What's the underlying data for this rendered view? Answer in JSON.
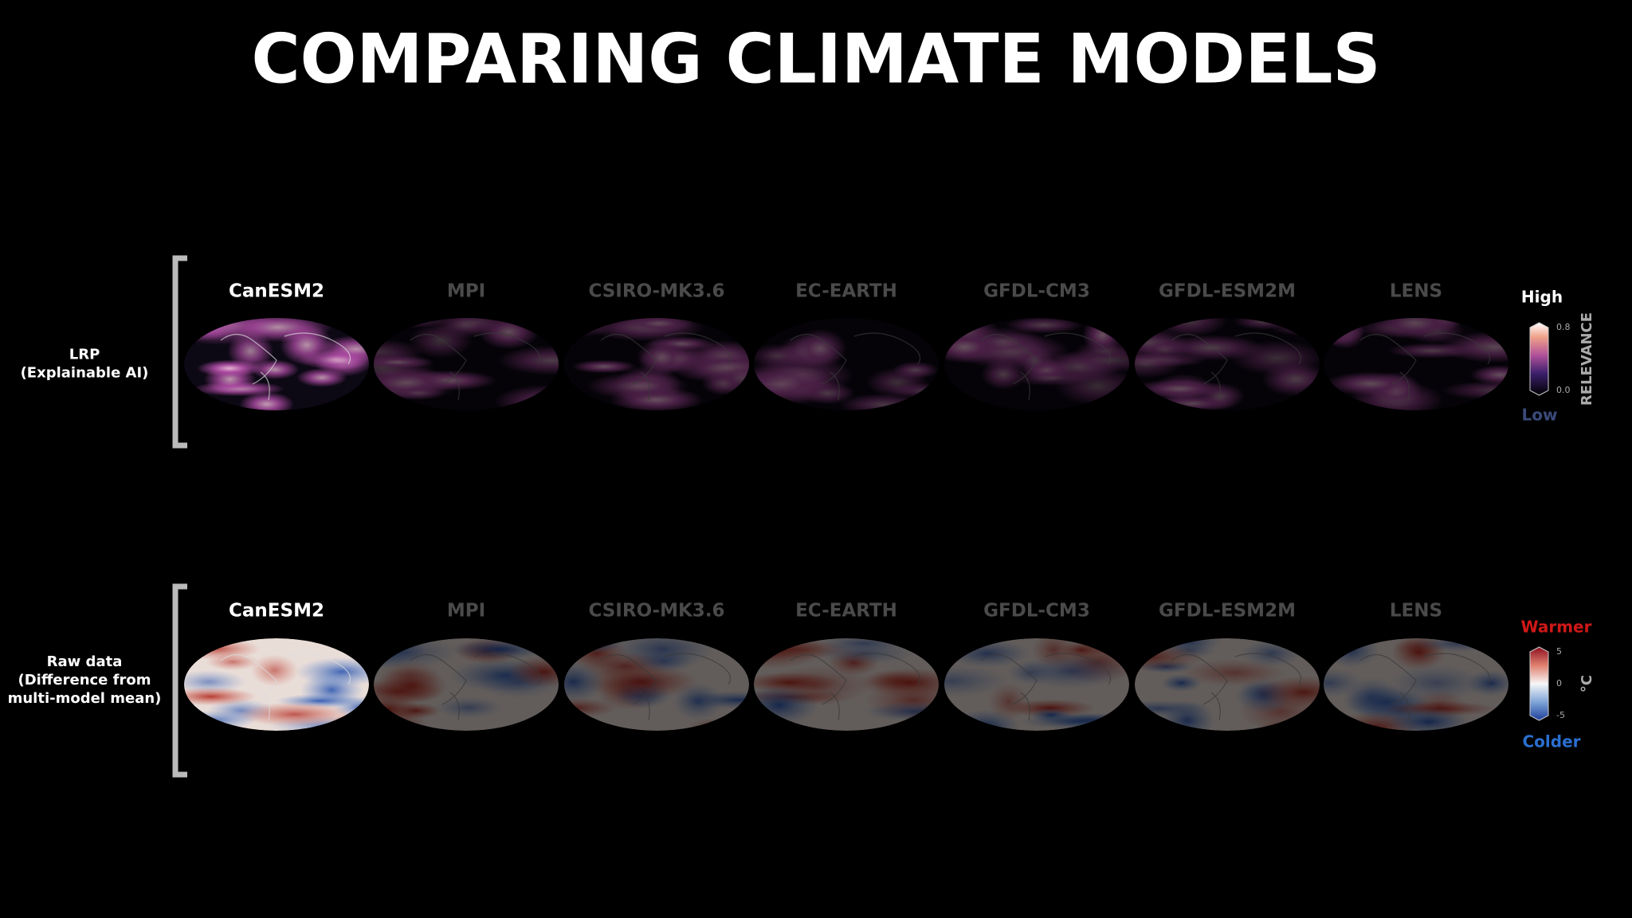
{
  "title": "COMPARING CLIMATE MODELS",
  "rows": [
    {
      "label": [
        "LRP",
        "(Explainable AI)"
      ],
      "models": [
        "CanESM2",
        "MPI",
        "CSIRO-MK3.6",
        "EC-EARTH",
        "GFDL-CM3",
        "GFDL-ESM2M",
        "LENS"
      ],
      "colorbar": {
        "top": "High",
        "bottom": "Low",
        "axis_label": "RELEVANCE",
        "ticks": [
          "0.8",
          "0.0"
        ]
      }
    },
    {
      "label": [
        "Raw data",
        "(Difference from",
        "multi-model mean)"
      ],
      "models": [
        "CanESM2",
        "MPI",
        "CSIRO-MK3.6",
        "EC-EARTH",
        "GFDL-CM3",
        "GFDL-ESM2M",
        "LENS"
      ],
      "colorbar": {
        "top": "Warmer",
        "bottom": "Colder",
        "axis_label": "°C",
        "ticks": [
          "5",
          "0",
          "-5"
        ]
      }
    }
  ]
}
